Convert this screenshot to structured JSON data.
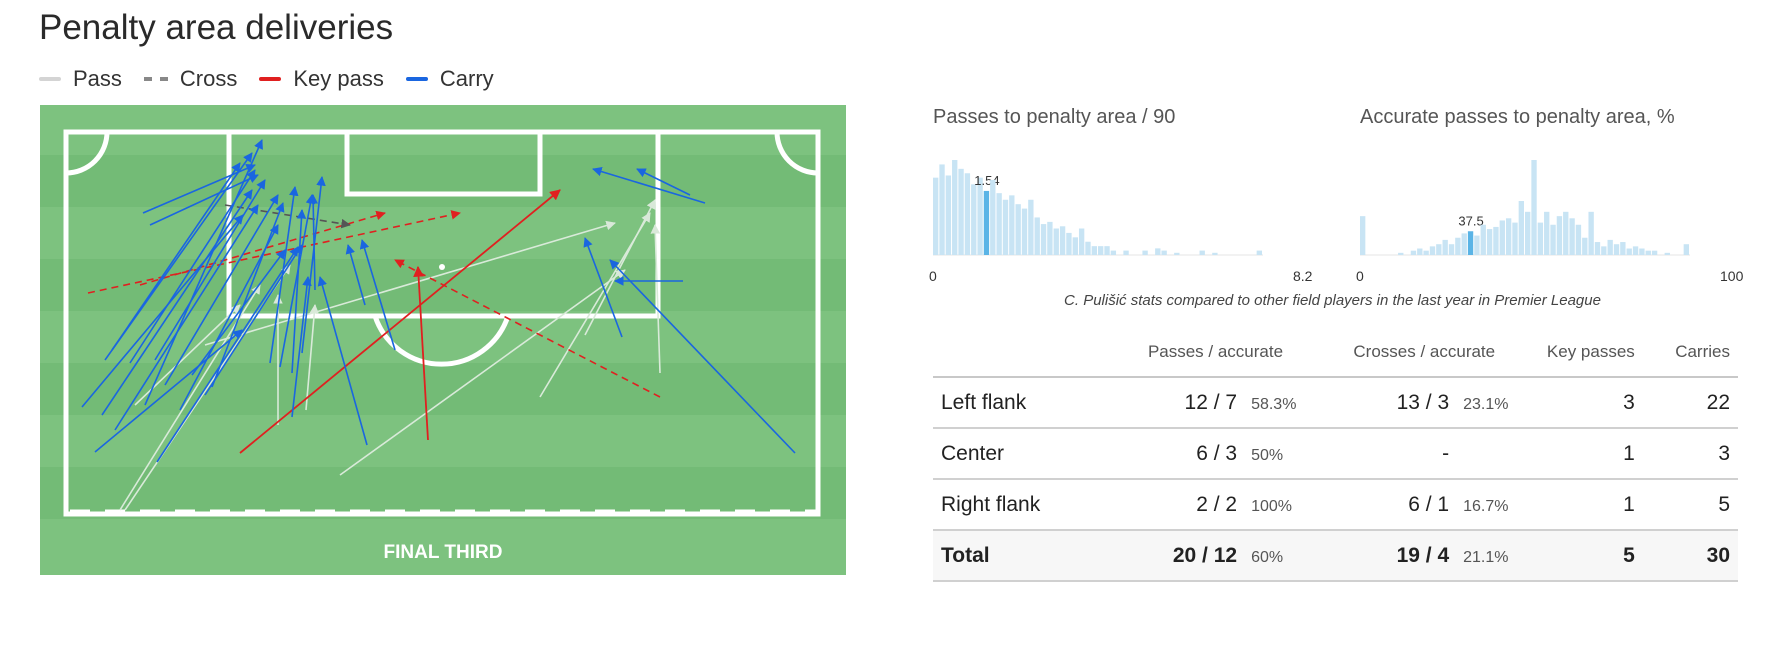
{
  "title": "Penalty area deliveries",
  "legend": [
    {
      "label": "Pass",
      "color": "#d4d4d4",
      "style": "solid"
    },
    {
      "label": "Cross",
      "color": "#888888",
      "style": "dashed"
    },
    {
      "label": "Key pass",
      "color": "#e02020",
      "style": "solid"
    },
    {
      "label": "Carry",
      "color": "#1a66e0",
      "style": "solid"
    }
  ],
  "pitch": {
    "zone_label": "FINAL THIRD",
    "colors": {
      "grass_light": "#7dc27f",
      "grass_dark": "#72ba75",
      "lines": "#ffffff"
    }
  },
  "chart_data": [
    {
      "type": "bar",
      "title": "Passes to penalty area / 90",
      "x_min_label": "0",
      "x_max_label": "8.2",
      "highlight_index": 8,
      "highlight_label": "1.54",
      "color": "#c8e4f4",
      "highlight_color": "#5ab4e6",
      "values": [
        70,
        82,
        72,
        86,
        78,
        74,
        64,
        70,
        58,
        68,
        56,
        50,
        54,
        46,
        42,
        50,
        34,
        28,
        30,
        24,
        26,
        20,
        16,
        24,
        12,
        8,
        8,
        8,
        4,
        0,
        4,
        0,
        0,
        4,
        0,
        6,
        4,
        0,
        2,
        0,
        0,
        0,
        4,
        0,
        2,
        0,
        0,
        0,
        0,
        0,
        0,
        4
      ]
    },
    {
      "type": "bar",
      "title": "Accurate passes to penalty area, %",
      "x_min_label": "0",
      "x_max_label": "100",
      "highlight_index": 17,
      "highlight_label": "37.5",
      "color": "#c8e4f4",
      "highlight_color": "#5ab4e6",
      "values": [
        36,
        0,
        0,
        0,
        0,
        0,
        2,
        0,
        4,
        6,
        4,
        8,
        10,
        14,
        10,
        16,
        20,
        22,
        18,
        28,
        24,
        26,
        32,
        34,
        30,
        50,
        40,
        88,
        30,
        40,
        28,
        36,
        40,
        34,
        28,
        16,
        40,
        12,
        8,
        14,
        10,
        12,
        6,
        8,
        6,
        4,
        4,
        0,
        2,
        0,
        0,
        10
      ]
    }
  ],
  "caption": "C. Pulišić stats compared to other field players in the last year in Premier League",
  "table": {
    "headers": [
      "",
      "Passes / accurate",
      "Crosses / accurate",
      "Key passes",
      "Carries"
    ],
    "rows": [
      {
        "label": "Left flank",
        "passes": "12 / 7",
        "passes_pct": "58.3%",
        "crosses": "13 / 3",
        "crosses_pct": "23.1%",
        "key_passes": "3",
        "carries": "22"
      },
      {
        "label": "Center",
        "passes": "6 / 3",
        "passes_pct": "50%",
        "crosses": "-",
        "crosses_pct": "",
        "key_passes": "1",
        "carries": "3"
      },
      {
        "label": "Right flank",
        "passes": "2 / 2",
        "passes_pct": "100%",
        "crosses": "6 / 1",
        "crosses_pct": "16.7%",
        "key_passes": "1",
        "carries": "5"
      }
    ],
    "total": {
      "label": "Total",
      "passes": "20 / 12",
      "passes_pct": "60%",
      "crosses": "19 / 4",
      "crosses_pct": "21.1%",
      "key_passes": "5",
      "carries": "30"
    }
  }
}
